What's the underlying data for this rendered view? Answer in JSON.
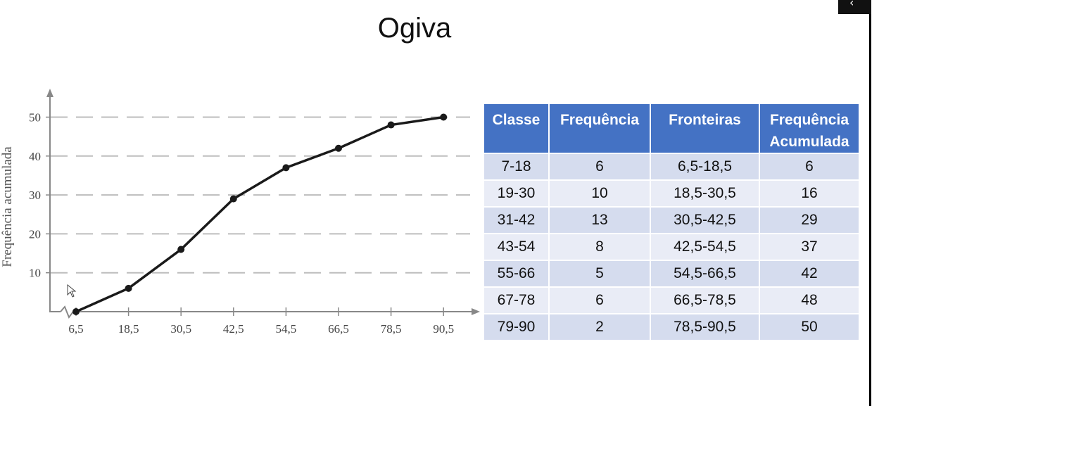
{
  "slide": {
    "title": "Ogiva"
  },
  "chart_data": {
    "type": "line",
    "title": "",
    "ylabel": "Frequência acumulada",
    "xlabel": "",
    "x": [
      "6,5",
      "18,5",
      "30,5",
      "42,5",
      "54,5",
      "66,5",
      "78,5",
      "90,5"
    ],
    "series": [
      {
        "values": [
          0,
          6,
          16,
          29,
          37,
          42,
          48,
          50
        ]
      }
    ],
    "ylim": [
      0,
      50
    ],
    "yticks": [
      10,
      20,
      30,
      40,
      50
    ],
    "grid": "dashed horizontal",
    "axis_break": true,
    "colors": {
      "line": "#1a1a1a",
      "grid": "#bdbdbd",
      "axis": "#888888"
    }
  },
  "table": {
    "headers": [
      "Classe",
      "Frequência",
      "Fronteiras",
      "Frequência Acumulada"
    ],
    "rows": [
      [
        "7-18",
        "6",
        "6,5-18,5",
        "6"
      ],
      [
        "19-30",
        "10",
        "18,5-30,5",
        "16"
      ],
      [
        "31-42",
        "13",
        "30,5-42,5",
        "29"
      ],
      [
        "43-54",
        "8",
        "42,5-54,5",
        "37"
      ],
      [
        "55-66",
        "5",
        "54,5-66,5",
        "42"
      ],
      [
        "67-78",
        "6",
        "66,5-78,5",
        "48"
      ],
      [
        "79-90",
        "2",
        "78,5-90,5",
        "50"
      ]
    ],
    "colors": {
      "header": "#4472c4",
      "row_dark": "#d5dcee",
      "row_light": "#e9ecf6"
    }
  },
  "icons": {
    "cursor": "mouse-pointer-icon",
    "corner": "chevron-left-icon"
  }
}
